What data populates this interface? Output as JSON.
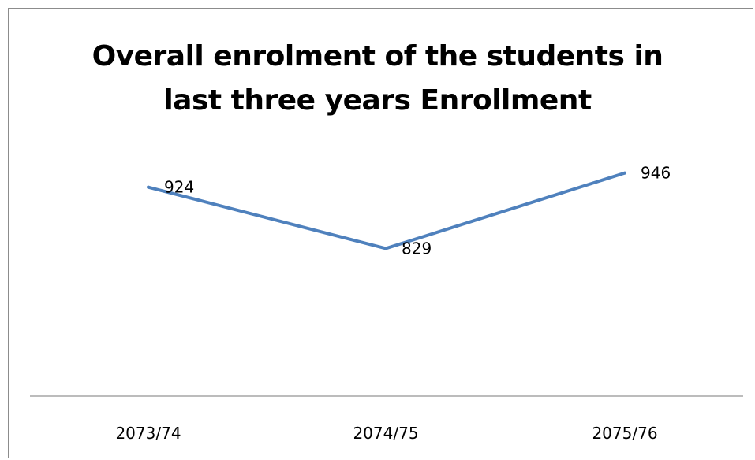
{
  "chart_data": {
    "type": "line",
    "title_lines": [
      "Overall enrolment of the students in",
      "last three years Enrollment"
    ],
    "categories": [
      "2073/74",
      "2074/75",
      "2075/76"
    ],
    "values": [
      924,
      829,
      946
    ],
    "data_labels": [
      "924",
      "829",
      "946"
    ],
    "ylim": [
      600,
      970
    ],
    "grid": false,
    "legend": "none",
    "line_color": "#4f81bd"
  }
}
